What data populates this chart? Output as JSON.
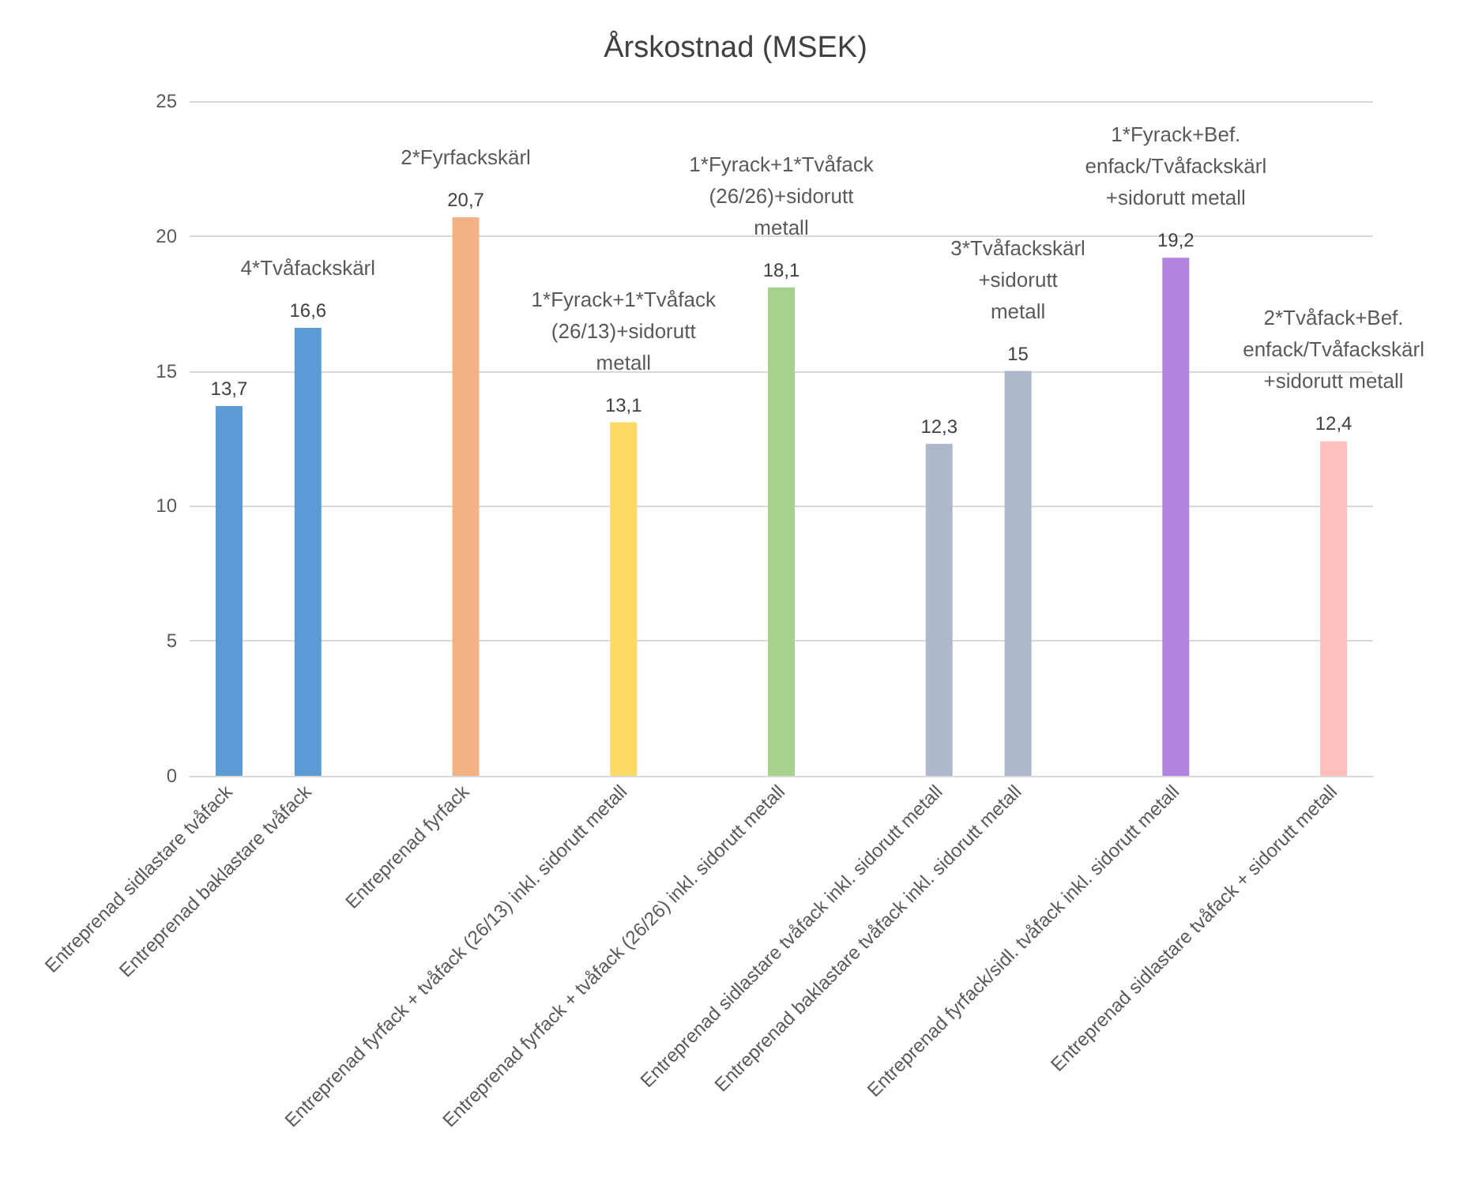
{
  "chart_data": {
    "type": "bar",
    "title": "Årskostnad (MSEK)",
    "categories": [
      "Entreprenad sidlastare tvåfack",
      "Entreprenad baklastare tvåfack",
      null,
      "Entreprenad fyrfack",
      null,
      "Entreprenad fyrfack + tvåfack (26/13) inkl. sidorutt metall",
      null,
      "Entreprenad fyrfack + tvåfack (26/26) inkl. sidorutt metall",
      null,
      "Entreprenad sidlastare tvåfack inkl. sidorutt metall",
      "Entreprenad baklastare tvåfack inkl. sidorutt metall",
      null,
      "Entreprenad fyrfack/sidl. tvåfack inkl. sidorutt metall",
      null,
      "Entreprenad sidlastare tvåfack + sidorutt metall"
    ],
    "values": [
      13.7,
      16.6,
      null,
      20.7,
      null,
      13.1,
      null,
      18.1,
      null,
      12.3,
      15,
      null,
      19.2,
      null,
      12.4
    ],
    "value_labels": [
      "13,7",
      "16,6",
      null,
      "20,7",
      null,
      "13,1",
      null,
      "18,1",
      null,
      "12,3",
      "15",
      null,
      "19,2",
      null,
      "12,4"
    ],
    "colors": [
      "#5b9bd5",
      "#5b9bd5",
      null,
      "#f4b183",
      null,
      "#ffd966",
      null,
      "#a9d18e",
      null,
      "#adb9ca",
      "#adb9ca",
      null,
      "#b383e0",
      null,
      "#ffbfbf"
    ],
    "ylim": [
      0,
      25
    ],
    "yticks": [
      0,
      5,
      10,
      15,
      20,
      25
    ],
    "grid": "y",
    "annotations": [
      "4*Tvåfackskärl",
      "2*Fyrfackskärl",
      "1*Fyrack+1*Tvåfack\n(26/13)+sidorutt\nmetall",
      "1*Fyrack+1*Tvåfack\n(26/26)+sidorutt\nmetall",
      "3*Tvåfackskärl\n+sidorutt\nmetall",
      "1*Fyrack+Bef.\nenfack/Tvåfackskärl\n+sidorutt metall",
      "2*Tvåfack+Bef.\nenfack/Tvåfackskärl\n+sidorutt metall"
    ]
  }
}
